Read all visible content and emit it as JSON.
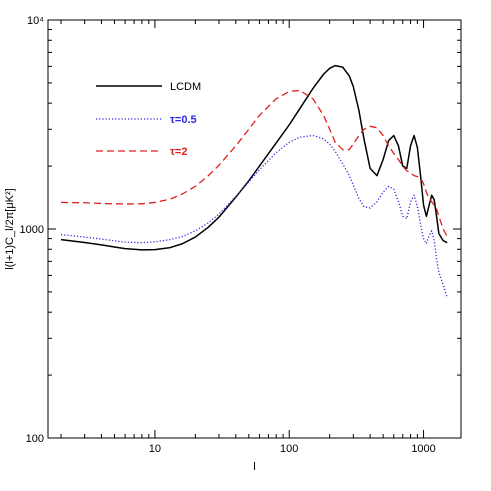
{
  "chart_data": {
    "type": "line",
    "xlabel": "l",
    "ylabel": "l(l+1)C_l/2π[μK²]",
    "xscale": "log",
    "yscale": "log",
    "xlim": [
      1.6,
      1900
    ],
    "ylim": [
      100,
      10000
    ],
    "x_tick_labels": [
      {
        "value": 10,
        "label": "10"
      },
      {
        "value": 100,
        "label": "100"
      },
      {
        "value": 1000,
        "label": "1000"
      }
    ],
    "y_tick_labels": [
      {
        "value": 100,
        "label": "100"
      },
      {
        "value": 1000,
        "label": "1000"
      },
      {
        "value": 10000,
        "label": "10⁴"
      }
    ],
    "legend_position": "top-left",
    "series": [
      {
        "name": "LCDM",
        "color": "#000000",
        "dash": "solid",
        "label_color": "#000000",
        "x": [
          2,
          3,
          4,
          5,
          6,
          8,
          10,
          13,
          16,
          20,
          25,
          30,
          40,
          50,
          60,
          80,
          100,
          120,
          150,
          180,
          200,
          220,
          250,
          280,
          300,
          330,
          360,
          400,
          450,
          500,
          550,
          600,
          650,
          700,
          750,
          800,
          850,
          900,
          950,
          1000,
          1050,
          1100,
          1150,
          1200,
          1250,
          1300,
          1400,
          1500
        ],
        "y": [
          890,
          862,
          840,
          820,
          806,
          795,
          797,
          815,
          850,
          915,
          1020,
          1140,
          1420,
          1700,
          2000,
          2580,
          3150,
          3770,
          4700,
          5500,
          5870,
          6050,
          5950,
          5400,
          4800,
          3700,
          2700,
          1950,
          1800,
          2150,
          2650,
          2800,
          2500,
          2000,
          1950,
          2500,
          2800,
          2450,
          1800,
          1300,
          1150,
          1300,
          1450,
          1380,
          1150,
          950,
          880,
          860
        ]
      },
      {
        "name": "τ=0.5",
        "color": "#2a2ae0",
        "dash": "dotted",
        "label_color": "#2a2ae0",
        "x": [
          2,
          3,
          4,
          5,
          6,
          8,
          10,
          13,
          16,
          20,
          25,
          30,
          40,
          50,
          60,
          80,
          100,
          120,
          150,
          180,
          200,
          220,
          250,
          280,
          300,
          330,
          360,
          400,
          450,
          500,
          550,
          600,
          650,
          700,
          750,
          800,
          850,
          900,
          950,
          1000,
          1050,
          1100,
          1150,
          1200,
          1250,
          1300,
          1400,
          1500
        ],
        "y": [
          940,
          915,
          895,
          878,
          865,
          860,
          868,
          890,
          920,
          980,
          1070,
          1180,
          1430,
          1680,
          1920,
          2320,
          2600,
          2750,
          2800,
          2700,
          2550,
          2350,
          2050,
          1800,
          1620,
          1400,
          1280,
          1260,
          1350,
          1500,
          1600,
          1550,
          1350,
          1150,
          1120,
          1350,
          1450,
          1280,
          1050,
          900,
          850,
          930,
          980,
          880,
          720,
          620,
          540,
          470
        ]
      },
      {
        "name": "τ=2",
        "color": "#e02020",
        "dash": "dashed",
        "label_color": "#e02020",
        "x": [
          2,
          3,
          4,
          5,
          6,
          8,
          10,
          13,
          16,
          20,
          25,
          30,
          40,
          50,
          60,
          80,
          100,
          120,
          150,
          180,
          200,
          220,
          250,
          280,
          300,
          330,
          360,
          400,
          450,
          500,
          550,
          600,
          650,
          700,
          750,
          800,
          850,
          900,
          950,
          1000,
          1050,
          1100,
          1150,
          1200,
          1250,
          1300,
          1400,
          1500
        ],
        "y": [
          1340,
          1335,
          1325,
          1320,
          1318,
          1320,
          1340,
          1390,
          1470,
          1600,
          1800,
          2020,
          2500,
          3000,
          3500,
          4200,
          4550,
          4600,
          4200,
          3500,
          3000,
          2600,
          2400,
          2400,
          2550,
          2800,
          3000,
          3100,
          3050,
          2800,
          2500,
          2300,
          2150,
          2000,
          1900,
          1850,
          1800,
          1780,
          1750,
          1650,
          1500,
          1400,
          1350,
          1300,
          1250,
          1150,
          1000,
          920
        ]
      }
    ]
  }
}
